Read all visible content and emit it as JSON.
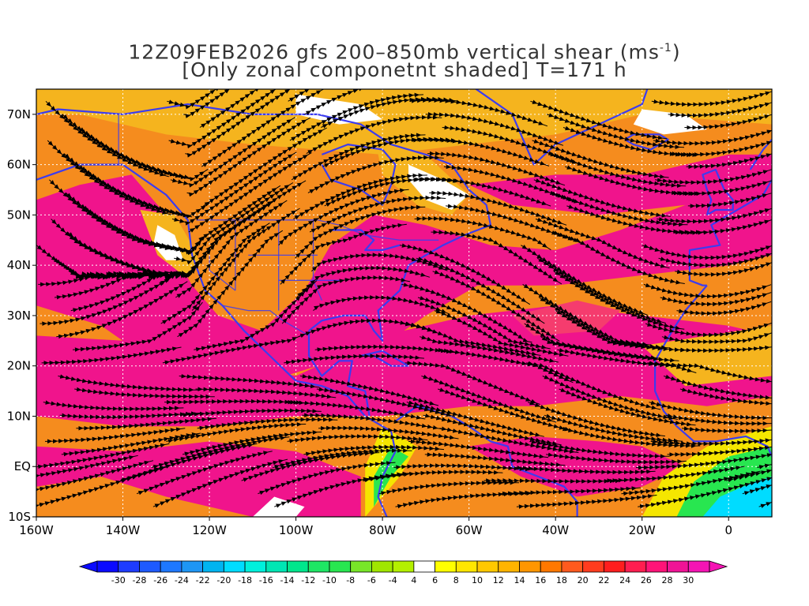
{
  "title": {
    "line1_pre": "12Z09FEB2026 gfs 200–850mb vertical shear (ms",
    "line1_sup": "-1",
    "line1_post": ")",
    "line2": "[Only zonal componetnt shaded] T=171 h"
  },
  "map": {
    "lon_range": [
      -160,
      10
    ],
    "lat_range": [
      -10,
      75
    ],
    "lat_ticks": [
      {
        "lat": 70,
        "label": "70N"
      },
      {
        "lat": 60,
        "label": "60N"
      },
      {
        "lat": 50,
        "label": "50N"
      },
      {
        "lat": 40,
        "label": "40N"
      },
      {
        "lat": 30,
        "label": "30N"
      },
      {
        "lat": 20,
        "label": "20N"
      },
      {
        "lat": 10,
        "label": "10N"
      },
      {
        "lat": 0,
        "label": "EQ"
      },
      {
        "lat": -10,
        "label": "10S"
      }
    ],
    "lon_ticks": [
      {
        "lon": -160,
        "label": "160W"
      },
      {
        "lon": -140,
        "label": "140W"
      },
      {
        "lon": -120,
        "label": "120W"
      },
      {
        "lon": -100,
        "label": "100W"
      },
      {
        "lon": -80,
        "label": "80W"
      },
      {
        "lon": -60,
        "label": "60W"
      },
      {
        "lon": -40,
        "label": "40W"
      },
      {
        "lon": -20,
        "label": "20W"
      },
      {
        "lon": 0,
        "label": "0"
      }
    ],
    "colors": {
      "strong": "#f0148c",
      "high": "#f53c6e",
      "medium": "#f58c1e",
      "low": "#f5b41e",
      "weak": "#f5e600",
      "calm": "#ffffff",
      "negative": "#28e650",
      "coast": "#3c3cf0",
      "boundary": "#a050c8",
      "streamline": "#000000",
      "grid": "#ffffff"
    }
  },
  "colorbar": {
    "labels": [
      "-30",
      "-28",
      "-26",
      "-24",
      "-22",
      "-20",
      "-18",
      "-16",
      "-14",
      "-12",
      "-10",
      "-8",
      "-6",
      "-4",
      "4",
      "6",
      "8",
      "10",
      "12",
      "14",
      "16",
      "18",
      "20",
      "22",
      "24",
      "26",
      "28",
      "30"
    ],
    "colors": [
      "#0a0aff",
      "#1e3cff",
      "#1e5aff",
      "#1e78ff",
      "#1e96f5",
      "#00b4f0",
      "#00dcff",
      "#00f0dc",
      "#00e6b4",
      "#00e68c",
      "#1ee664",
      "#28e650",
      "#78e628",
      "#a0e600",
      "#b4f000",
      "#ffffff",
      "#ffff00",
      "#ffe600",
      "#ffc800",
      "#ffb400",
      "#ff9600",
      "#ff7800",
      "#ff5a1e",
      "#ff3c1e",
      "#ff1e1e",
      "#ff1e50",
      "#ff1478",
      "#f01496",
      "#f514b4"
    ]
  }
}
